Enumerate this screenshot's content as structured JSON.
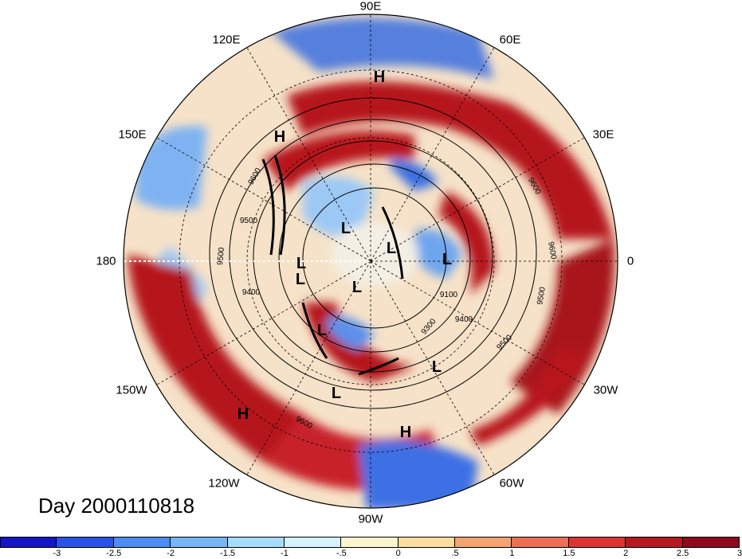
{
  "title": "Day 2000110818",
  "longitude_labels": [
    {
      "text": "90E"
    },
    {
      "text": "60E"
    },
    {
      "text": "30E"
    },
    {
      "text": "0"
    },
    {
      "text": "30W"
    },
    {
      "text": "60W"
    },
    {
      "text": "90W"
    },
    {
      "text": "120W"
    },
    {
      "text": "150W"
    },
    {
      "text": "180"
    },
    {
      "text": "150E"
    },
    {
      "text": "120E"
    }
  ],
  "pressure_centers": [
    "H",
    "H",
    "H",
    "H",
    "L",
    "L",
    "L",
    "L",
    "L",
    "L",
    "L",
    "L",
    "L"
  ],
  "contour_labels": [
    "9600",
    "9500",
    "9500",
    "9400",
    "9100",
    "9400",
    "9300",
    "9500",
    "9500",
    "9600",
    "9600",
    "9600"
  ],
  "colorbar": {
    "colors": [
      "#1515c8",
      "#2b52e8",
      "#4d8cf2",
      "#76b6f7",
      "#a5dcfa",
      "#d6f2fb",
      "#fdf5cf",
      "#fcdca0",
      "#f4a372",
      "#ec6e55",
      "#dc3531",
      "#b51921",
      "#8e0a1a"
    ],
    "tick_labels": [
      "-3",
      "-2.5",
      "-2",
      "-1.5",
      "-1",
      "-.5",
      "0",
      ".5",
      "1",
      "1.5",
      "2",
      "2.5",
      "3"
    ]
  }
}
